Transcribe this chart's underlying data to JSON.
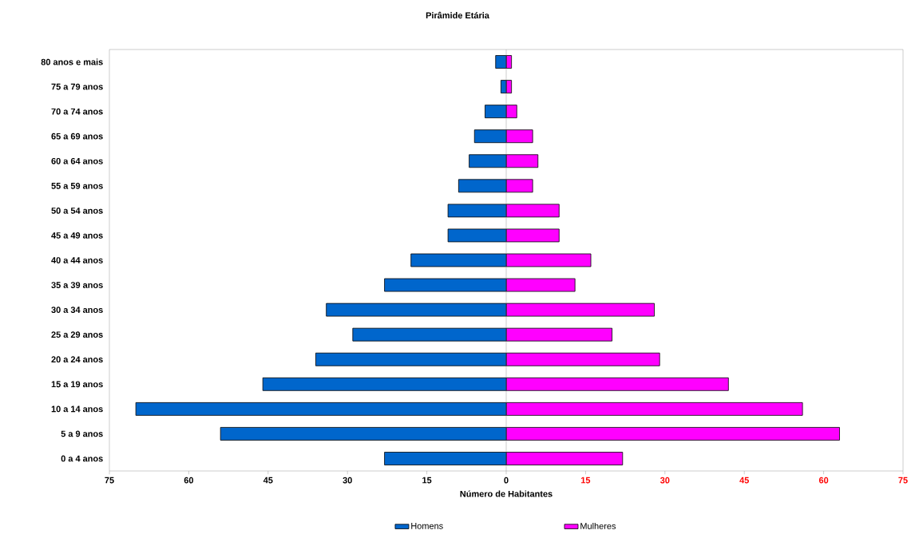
{
  "chart_data": {
    "type": "bar",
    "orientation": "horizontal",
    "title": "Pirâmide Etária",
    "xlabel": "Número de Habitantes",
    "categories": [
      "80 anos e mais",
      "75 a 79 anos",
      "70 a 74 anos",
      "65 a 69 anos",
      "60 a 64 anos",
      "55 a 59 anos",
      "50 a 54 anos",
      "45 a 49 anos",
      "40 a 44 anos",
      "35 a 39 anos",
      "30 a 34 anos",
      "25 a 29 anos",
      "20 a 24 anos",
      "15 a 19 anos",
      "10 a 14 anos",
      "5 a 9 anos",
      "0 a 4 anos"
    ],
    "series": [
      {
        "name": "Homens",
        "color": "#0066cc",
        "values": [
          -2,
          -1,
          -4,
          -6,
          -7,
          -9,
          -11,
          -11,
          -18,
          -23,
          -34,
          -29,
          -36,
          -46,
          -70,
          -54,
          -23
        ]
      },
      {
        "name": "Mulheres",
        "color": "#ff00ff",
        "values": [
          1,
          1,
          2,
          5,
          6,
          5,
          10,
          10,
          16,
          13,
          28,
          20,
          29,
          42,
          56,
          63,
          22
        ]
      }
    ],
    "xlim": [
      -75,
      75
    ],
    "xticks": [
      {
        "value": -75,
        "label": "75"
      },
      {
        "value": -60,
        "label": "60"
      },
      {
        "value": -45,
        "label": "45"
      },
      {
        "value": -30,
        "label": "30"
      },
      {
        "value": -15,
        "label": "15"
      },
      0,
      15,
      30,
      45,
      60,
      75
    ],
    "legend": "bottom",
    "stacked": true
  }
}
